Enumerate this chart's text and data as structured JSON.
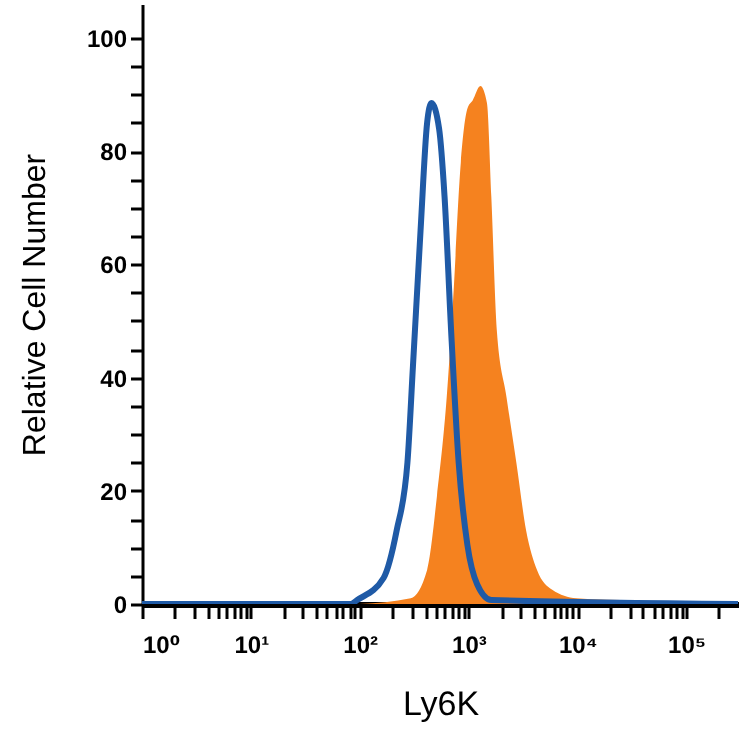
{
  "chart_data": {
    "type": "line",
    "xlabel": "Ly6K",
    "ylabel": "Relative Cell Number",
    "log": "x",
    "xlim": [
      1,
      300000
    ],
    "ylim": [
      0,
      106
    ],
    "xticks": [
      {
        "value": 1,
        "label": "10⁰"
      },
      {
        "value": 2,
        "label": null
      },
      {
        "value": 3,
        "label": null
      },
      {
        "value": 4,
        "label": null
      },
      {
        "value": 5,
        "label": null
      },
      {
        "value": 6,
        "label": null
      },
      {
        "value": 7,
        "label": null
      },
      {
        "value": 8,
        "label": null
      },
      {
        "value": 9,
        "label": null
      },
      {
        "value": 10,
        "label": "10¹"
      },
      {
        "value": 20,
        "label": null
      },
      {
        "value": 30,
        "label": null
      },
      {
        "value": 40,
        "label": null
      },
      {
        "value": 50,
        "label": null
      },
      {
        "value": 60,
        "label": null
      },
      {
        "value": 70,
        "label": null
      },
      {
        "value": 80,
        "label": null
      },
      {
        "value": 90,
        "label": null
      },
      {
        "value": 100,
        "label": "10²"
      },
      {
        "value": 200,
        "label": null
      },
      {
        "value": 300,
        "label": null
      },
      {
        "value": 400,
        "label": null
      },
      {
        "value": 500,
        "label": null
      },
      {
        "value": 600,
        "label": null
      },
      {
        "value": 700,
        "label": null
      },
      {
        "value": 800,
        "label": null
      },
      {
        "value": 900,
        "label": null
      },
      {
        "value": 1000,
        "label": "10³"
      },
      {
        "value": 2000,
        "label": null
      },
      {
        "value": 3000,
        "label": null
      },
      {
        "value": 4000,
        "label": null
      },
      {
        "value": 5000,
        "label": null
      },
      {
        "value": 6000,
        "label": null
      },
      {
        "value": 7000,
        "label": null
      },
      {
        "value": 8000,
        "label": null
      },
      {
        "value": 9000,
        "label": null
      },
      {
        "value": 10000,
        "label": "10⁴"
      },
      {
        "value": 20000,
        "label": null
      },
      {
        "value": 30000,
        "label": null
      },
      {
        "value": 40000,
        "label": null
      },
      {
        "value": 50000,
        "label": null
      },
      {
        "value": 60000,
        "label": null
      },
      {
        "value": 70000,
        "label": null
      },
      {
        "value": 80000,
        "label": null
      },
      {
        "value": 90000,
        "label": null
      },
      {
        "value": 100000,
        "label": "10⁵"
      },
      {
        "value": 200000,
        "label": null
      }
    ],
    "yticks": [
      0,
      {
        "value": 5,
        "label": null
      },
      {
        "value": 10,
        "label": null
      },
      {
        "value": 15,
        "label": null
      },
      20,
      {
        "value": 25,
        "label": null
      },
      {
        "value": 30,
        "label": null
      },
      {
        "value": 35,
        "label": null
      },
      40,
      {
        "value": 45,
        "label": null
      },
      {
        "value": 50,
        "label": null
      },
      {
        "value": 55,
        "label": null
      },
      60,
      {
        "value": 65,
        "label": null
      },
      {
        "value": 70,
        "label": null
      },
      {
        "value": 75,
        "label": null
      },
      80,
      {
        "value": 85,
        "label": null
      },
      {
        "value": 90,
        "label": null
      },
      {
        "value": 95,
        "label": null
      },
      100
    ],
    "series": [
      {
        "type": "area",
        "color": "#f5821f",
        "x": [
          100,
          295,
          417,
          513,
          631,
          724,
          851,
          977,
          1096,
          1288,
          1479,
          1622,
          1820,
          2239,
          2754,
          3388,
          4266,
          5888,
          9772,
          34674,
          40000
        ],
        "values": [
          0,
          1,
          6,
          19,
          36.5,
          54,
          78,
          87.5,
          89,
          91.5,
          88.5,
          72,
          48.5,
          36.5,
          25,
          13,
          6,
          2.5,
          1,
          0.5,
          0
        ]
      },
      {
        "color": "#1f5aa6",
        "x": [
          1,
          83,
          95,
          166,
          219,
          275,
          309,
          363,
          417,
          457,
          537,
          603,
          692,
          813,
          977,
          1202,
          1622,
          300000
        ],
        "values": [
          0,
          0,
          0.7,
          4.6,
          13,
          25,
          42,
          66,
          85,
          88.5,
          84,
          72,
          48.5,
          25,
          10.5,
          3.5,
          0.7,
          0
        ]
      }
    ]
  }
}
